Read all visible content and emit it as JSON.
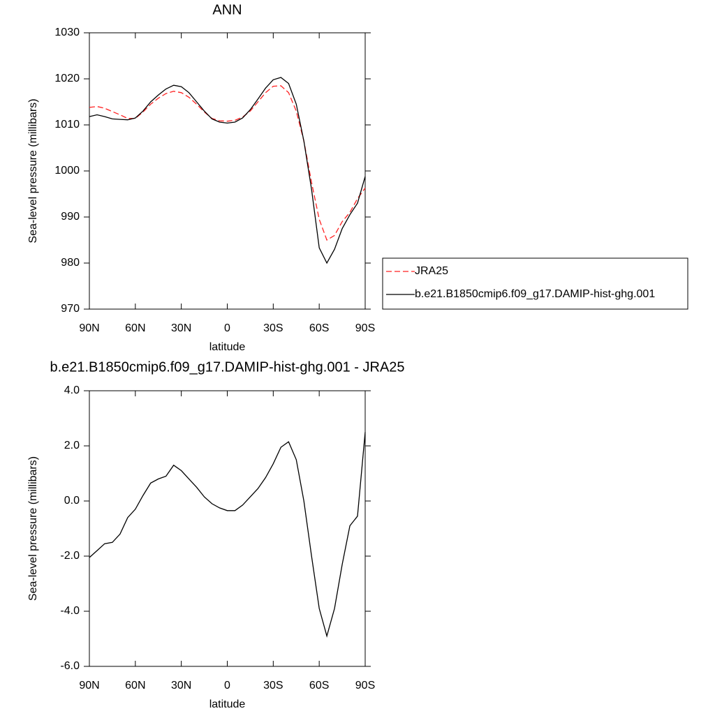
{
  "chart_data": [
    {
      "type": "line",
      "title": "ANN",
      "xlabel": "latitude",
      "ylabel": "Sea-level pressure (millibars)",
      "x": [
        90,
        85,
        80,
        75,
        70,
        65,
        60,
        55,
        50,
        45,
        40,
        35,
        30,
        25,
        20,
        15,
        10,
        5,
        0,
        -5,
        -10,
        -15,
        -20,
        -25,
        -30,
        -35,
        -40,
        -45,
        -50,
        -55,
        -60,
        -65,
        -70,
        -75,
        -80,
        -85,
        -90
      ],
      "xlim": [
        90,
        -90
      ],
      "xticks": [
        {
          "value": 90,
          "label": "90N"
        },
        {
          "value": 60,
          "label": "60N"
        },
        {
          "value": 30,
          "label": "30N"
        },
        0,
        {
          "value": -30,
          "label": "30S"
        },
        {
          "value": -60,
          "label": "60S"
        },
        {
          "value": -90,
          "label": "90S"
        }
      ],
      "ylim": [
        970,
        1030
      ],
      "yticks": [
        970,
        980,
        990,
        1000,
        1010,
        1020,
        1030
      ],
      "legend": "right",
      "series": [
        {
          "name": "JRA25",
          "color": "#ff2020",
          "line_style": "dashed",
          "values": [
            1013.8,
            1014,
            1013.6,
            1012.9,
            1012.2,
            1011.4,
            1011.4,
            1012.8,
            1014.5,
            1015.8,
            1016.8,
            1017.3,
            1017,
            1016,
            1014.5,
            1012.8,
            1011.4,
            1010.9,
            1010.8,
            1011,
            1011.7,
            1013,
            1015,
            1017,
            1018.4,
            1018.5,
            1017,
            1013,
            1006.5,
            997.5,
            989.5,
            985,
            986,
            989,
            991,
            994,
            996.3
          ]
        },
        {
          "name": "b.e21.B1850cmip6.f09_g17.DAMIP-hist-ghg.001",
          "color": "#000000",
          "line_style": "solid",
          "values": [
            1011.8,
            1012.2,
            1011.8,
            1011.3,
            1011.2,
            1011.1,
            1011.5,
            1013,
            1015,
            1016.5,
            1017.8,
            1018.6,
            1018.3,
            1017,
            1015,
            1013,
            1011.3,
            1010.6,
            1010.4,
            1010.6,
            1011.5,
            1013.3,
            1015.6,
            1018,
            1019.8,
            1020.3,
            1019,
            1014.5,
            1006.5,
            996,
            983.3,
            980,
            983,
            987.5,
            990.5,
            993,
            998.8
          ]
        }
      ]
    },
    {
      "type": "line",
      "title": "b.e21.B1850cmip6.f09_g17.DAMIP-hist-ghg.001 - JRA25",
      "xlabel": "latitude",
      "ylabel": "Sea-level pressure (millibars)",
      "x": [
        90,
        85,
        80,
        75,
        70,
        65,
        60,
        55,
        50,
        45,
        40,
        35,
        30,
        25,
        20,
        15,
        10,
        5,
        0,
        -5,
        -10,
        -15,
        -20,
        -25,
        -30,
        -35,
        -40,
        -45,
        -50,
        -55,
        -60,
        -65,
        -70,
        -75,
        -80,
        -85,
        -90
      ],
      "xlim": [
        90,
        -90
      ],
      "xticks": [
        {
          "value": 90,
          "label": "90N"
        },
        {
          "value": 60,
          "label": "60N"
        },
        {
          "value": 30,
          "label": "30N"
        },
        0,
        {
          "value": -30,
          "label": "30S"
        },
        {
          "value": -60,
          "label": "60S"
        },
        {
          "value": -90,
          "label": "90S"
        }
      ],
      "ylim": [
        -6,
        4
      ],
      "yticks": [
        {
          "value": -6,
          "label": "-6.0"
        },
        {
          "value": -4,
          "label": "-4.0"
        },
        {
          "value": -2,
          "label": "-2.0"
        },
        {
          "value": 0,
          "label": "0.0"
        },
        {
          "value": 2,
          "label": "2.0"
        },
        {
          "value": 4,
          "label": "4.0"
        }
      ],
      "series": [
        {
          "color": "#000000",
          "line_style": "solid",
          "values": [
            -2.05,
            -1.8,
            -1.55,
            -1.5,
            -1.2,
            -0.6,
            -0.3,
            0.2,
            0.65,
            0.8,
            0.9,
            1.3,
            1.1,
            0.8,
            0.5,
            0.15,
            -0.1,
            -0.25,
            -0.35,
            -0.35,
            -0.15,
            0.15,
            0.45,
            0.85,
            1.35,
            1.95,
            2.15,
            1.5,
            0,
            -2,
            -3.9,
            -4.9,
            -3.9,
            -2.3,
            -0.9,
            -0.55,
            2.5
          ]
        }
      ]
    }
  ]
}
